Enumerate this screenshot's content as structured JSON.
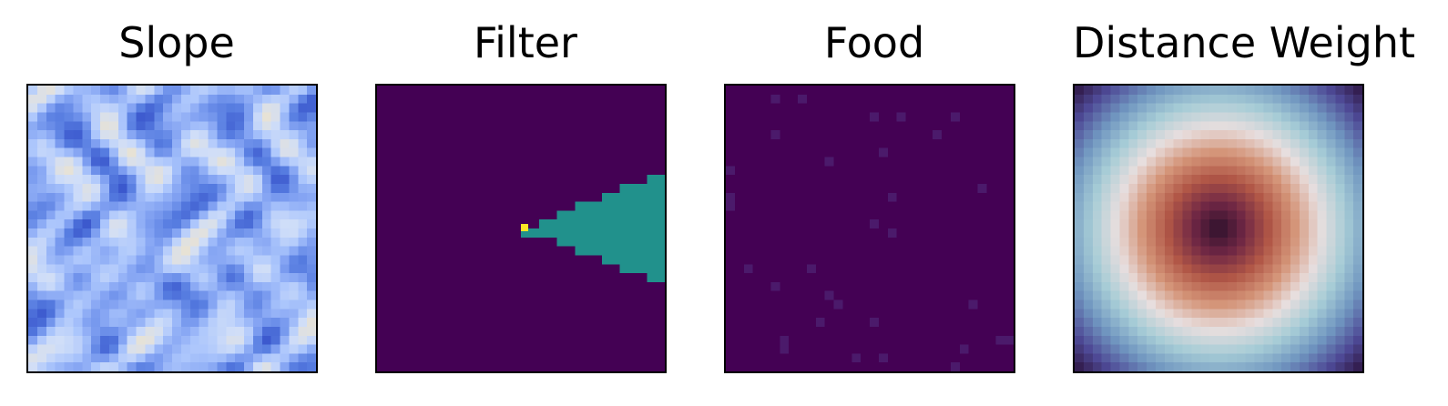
{
  "chart_data": [
    {
      "type": "heatmap",
      "title": "Slope",
      "colormap": "coolwarm-blues",
      "grid": false,
      "axes": "off"
    },
    {
      "type": "heatmap",
      "title": "Filter",
      "colormap": "viridis",
      "grid": false,
      "axes": "off",
      "values_present": [
        "low",
        "mid",
        "high"
      ]
    },
    {
      "type": "heatmap",
      "title": "Food",
      "colormap": "viridis",
      "grid": false,
      "axes": "off"
    },
    {
      "type": "heatmap",
      "title": "Distance Weight",
      "colormap": "twilight-shifted",
      "grid": false,
      "axes": "off"
    }
  ],
  "colors": {
    "viridis_low": "#440154",
    "viridis_mid": "#21918c",
    "viridis_high": "#fde725",
    "food_speck": "#4b1a6b",
    "frame": "#000000"
  }
}
